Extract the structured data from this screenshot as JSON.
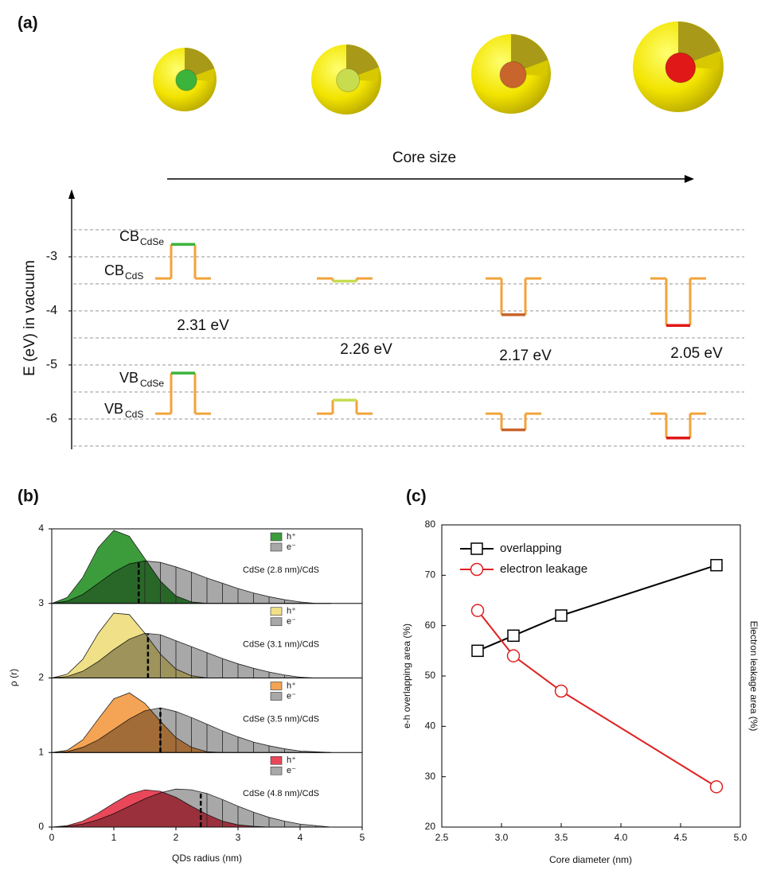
{
  "chart_data": [
    {
      "type": "energy-levels",
      "title": "(a)",
      "annotation": "Core size",
      "ylabel": "E (eV)  in vacuum",
      "ylim": [
        -6.56,
        -1.78
      ],
      "yticks": [
        -3,
        -4,
        -5,
        -6
      ],
      "grid_values": [
        -2.5,
        -3,
        -3.5,
        -4,
        -4.5,
        -5,
        -5.5,
        -6,
        -6.5
      ],
      "shell_color": "#f2a33a",
      "core_colors": [
        "#3cb43c",
        "#c8dc50",
        "#c8642c",
        "#e01818"
      ],
      "cb_shell": -3.4,
      "vb_shell": -5.9,
      "cb_core": [
        -2.77,
        -3.45,
        -4.07,
        -4.27
      ],
      "vb_core": [
        -5.15,
        -5.65,
        -6.2,
        -6.35
      ],
      "gap_labels": [
        "2.31 eV",
        "2.26 eV",
        "2.17 eV",
        "2.05 eV"
      ],
      "level_labels": [
        {
          "text": "CB",
          "sub": "CdSe"
        },
        {
          "text": "CB",
          "sub": "CdS"
        },
        {
          "text": "VB",
          "sub": "CdSe"
        },
        {
          "text": "VB",
          "sub": "CdS"
        }
      ]
    },
    {
      "type": "ridge-area",
      "title": "(b)",
      "xlabel": "QDs radius (nm)",
      "ylabel": "ρ (r)",
      "xlim": [
        0,
        5
      ],
      "xticks": [
        0,
        1,
        2,
        3,
        4,
        5
      ],
      "ylim": [
        0,
        4
      ],
      "yticks": [
        0,
        1,
        2,
        3,
        4
      ],
      "x": [
        0,
        0.25,
        0.5,
        0.75,
        1,
        1.25,
        1.5,
        1.75,
        2,
        2.25,
        2.5,
        2.75,
        3,
        3.25,
        3.5,
        3.75,
        4,
        4.25,
        4.5
      ],
      "panels": [
        {
          "label": "CdSe (2.8 nm)/CdS",
          "baseline": 3,
          "core_radius": 1.4,
          "series": [
            {
              "name": "h⁺",
              "color": "#3c9c3c",
              "values": [
                0,
                0.08,
                0.35,
                0.75,
                0.98,
                0.9,
                0.6,
                0.3,
                0.1,
                0.02,
                0,
                0,
                0,
                0,
                0,
                0,
                0,
                0,
                0
              ]
            },
            {
              "name": "e⁻",
              "color": "#a8a8a8",
              "values": [
                0,
                0.03,
                0.12,
                0.27,
                0.42,
                0.53,
                0.57,
                0.55,
                0.49,
                0.42,
                0.34,
                0.27,
                0.2,
                0.14,
                0.09,
                0.05,
                0.02,
                0,
                0
              ]
            }
          ]
        },
        {
          "label": "CdSe (3.1 nm)/CdS",
          "baseline": 2,
          "core_radius": 1.55,
          "series": [
            {
              "name": "h⁺",
              "color": "#f0e088",
              "values": [
                0,
                0.05,
                0.25,
                0.6,
                0.87,
                0.85,
                0.6,
                0.32,
                0.12,
                0.03,
                0,
                0,
                0,
                0,
                0,
                0,
                0,
                0,
                0
              ]
            },
            {
              "name": "e⁻",
              "color": "#a8a8a8",
              "values": [
                0,
                0.02,
                0.09,
                0.22,
                0.38,
                0.52,
                0.6,
                0.58,
                0.5,
                0.42,
                0.34,
                0.26,
                0.19,
                0.13,
                0.08,
                0.04,
                0.01,
                0,
                0
              ]
            }
          ]
        },
        {
          "label": "CdSe (3.5 nm)/CdS",
          "baseline": 1,
          "core_radius": 1.75,
          "series": [
            {
              "name": "h⁺",
              "color": "#f4a454",
              "values": [
                0,
                0.03,
                0.17,
                0.45,
                0.72,
                0.8,
                0.66,
                0.42,
                0.2,
                0.07,
                0.01,
                0,
                0,
                0,
                0,
                0,
                0,
                0,
                0
              ]
            },
            {
              "name": "e⁻",
              "color": "#a8a8a8",
              "values": [
                0,
                0.01,
                0.07,
                0.17,
                0.31,
                0.45,
                0.56,
                0.6,
                0.55,
                0.47,
                0.38,
                0.29,
                0.21,
                0.14,
                0.09,
                0.05,
                0.02,
                0.01,
                0
              ]
            }
          ]
        },
        {
          "label": "CdSe (4.8 nm)/CdS",
          "baseline": 0,
          "core_radius": 2.4,
          "series": [
            {
              "name": "h⁺",
              "color": "#e8485a",
              "values": [
                0,
                0.02,
                0.08,
                0.19,
                0.32,
                0.44,
                0.5,
                0.48,
                0.4,
                0.28,
                0.17,
                0.08,
                0.03,
                0.01,
                0,
                0,
                0,
                0,
                0
              ]
            },
            {
              "name": "e⁻",
              "color": "#a8a8a8",
              "values": [
                0,
                0.01,
                0.04,
                0.1,
                0.18,
                0.28,
                0.38,
                0.46,
                0.51,
                0.5,
                0.45,
                0.37,
                0.28,
                0.2,
                0.13,
                0.08,
                0.04,
                0.02,
                0
              ]
            }
          ]
        }
      ]
    },
    {
      "type": "line",
      "title": "(c)",
      "xlabel": "Core diameter (nm)",
      "ylabel": "e-h overlapping area (%)",
      "y2label": "Electron leakage area (%)",
      "xlim": [
        2.5,
        5
      ],
      "xticks": [
        2.5,
        {
          "value": 3,
          "label": "3.0"
        },
        3.5,
        {
          "value": 4,
          "label": "4.0"
        },
        4.5,
        {
          "value": 5,
          "label": "5.0"
        }
      ],
      "ylim": [
        20,
        80
      ],
      "yticks": [
        20,
        30,
        40,
        50,
        60,
        70,
        80
      ],
      "legend": "upper-left",
      "series": [
        {
          "name": "overlapping",
          "color": "#000000",
          "marker": "square",
          "x": [
            2.8,
            3.1,
            3.5,
            4.8
          ],
          "values": [
            55,
            58,
            62,
            72
          ]
        },
        {
          "name": "electron leakage",
          "color": "#e02020",
          "marker": "circle",
          "x": [
            2.8,
            3.1,
            3.5,
            4.8
          ],
          "values": [
            63,
            54,
            47,
            28
          ]
        }
      ]
    }
  ]
}
